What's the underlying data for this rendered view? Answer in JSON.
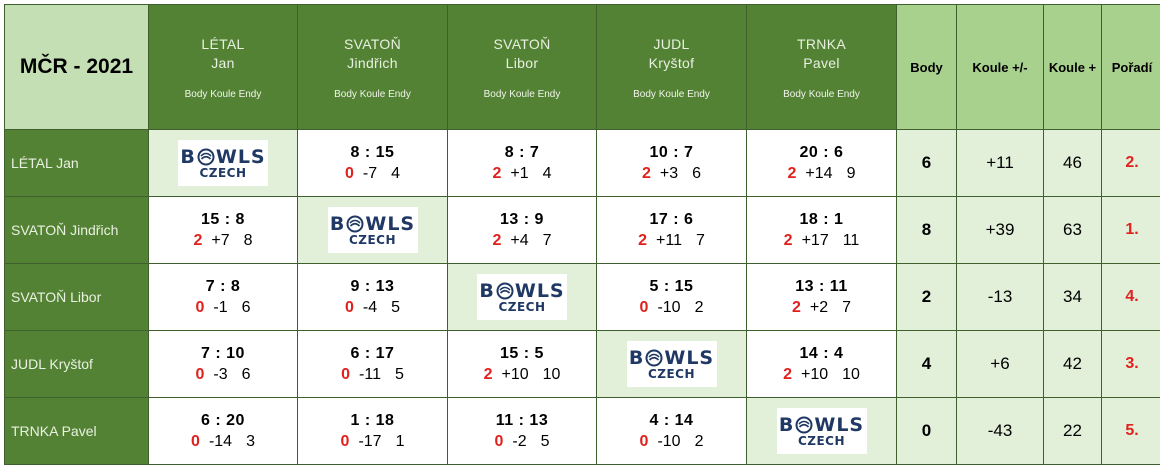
{
  "title": "MČR - 2021",
  "columns": [
    {
      "last": "LÉTAL",
      "first": "Jan",
      "sub": "Body Koule Endy"
    },
    {
      "last": "SVATOŇ",
      "first": "Jindřich",
      "sub": "Body Koule Endy"
    },
    {
      "last": "SVATOŇ",
      "first": "Libor",
      "sub": "Body Koule Endy"
    },
    {
      "last": "JUDL",
      "first": "Kryštof",
      "sub": "Body Koule Endy"
    },
    {
      "last": "TRNKA",
      "first": "Pavel",
      "sub": "Body Koule Endy"
    }
  ],
  "summary_headers": [
    "Body",
    "Koule +/-",
    "Koule +",
    "Pořadí"
  ],
  "logo": {
    "top": "BOWLS",
    "bottom": "CZECH",
    "ball_color": "#1f3864"
  },
  "colors": {
    "header_green": "#548235",
    "light_green": "#e2efd9",
    "mid_green": "#a9d18e",
    "points_red": "#e0211d"
  },
  "rows": [
    {
      "name": "LÉTAL Jan",
      "cells": [
        {
          "self": true
        },
        {
          "score": "8 : 15",
          "points": "0",
          "diff": "-7",
          "ends": "4"
        },
        {
          "score": "8 : 7",
          "points": "2",
          "diff": "+1",
          "ends": "4"
        },
        {
          "score": "10 : 7",
          "points": "2",
          "diff": "+3",
          "ends": "6"
        },
        {
          "score": "20 : 6",
          "points": "2",
          "diff": "+14",
          "ends": "9"
        }
      ],
      "body": "6",
      "koule_diff": "+11",
      "koule_plus": "46",
      "rank": "2."
    },
    {
      "name": "SVATOŇ Jindřich",
      "cells": [
        {
          "score": "15 : 8",
          "points": "2",
          "diff": "+7",
          "ends": "8"
        },
        {
          "self": true
        },
        {
          "score": "13 : 9",
          "points": "2",
          "diff": "+4",
          "ends": "7"
        },
        {
          "score": "17 : 6",
          "points": "2",
          "diff": "+11",
          "ends": "7"
        },
        {
          "score": "18 : 1",
          "points": "2",
          "diff": "+17",
          "ends": "11"
        }
      ],
      "body": "8",
      "koule_diff": "+39",
      "koule_plus": "63",
      "rank": "1."
    },
    {
      "name": "SVATOŇ Libor",
      "cells": [
        {
          "score": "7 : 8",
          "points": "0",
          "diff": "-1",
          "ends": "6"
        },
        {
          "score": "9 : 13",
          "points": "0",
          "diff": "-4",
          "ends": "5"
        },
        {
          "self": true
        },
        {
          "score": "5 : 15",
          "points": "0",
          "diff": "-10",
          "ends": "2"
        },
        {
          "score": "13 : 11",
          "points": "2",
          "diff": "+2",
          "ends": "7"
        }
      ],
      "body": "2",
      "koule_diff": "-13",
      "koule_plus": "34",
      "rank": "4."
    },
    {
      "name": "JUDL Kryštof",
      "cells": [
        {
          "score": "7 : 10",
          "points": "0",
          "diff": "-3",
          "ends": "6"
        },
        {
          "score": "6 : 17",
          "points": "0",
          "diff": "-11",
          "ends": "5"
        },
        {
          "score": "15 : 5",
          "points": "2",
          "diff": "+10",
          "ends": "10"
        },
        {
          "self": true
        },
        {
          "score": "14 : 4",
          "points": "2",
          "diff": "+10",
          "ends": "10"
        }
      ],
      "body": "4",
      "koule_diff": "+6",
      "koule_plus": "42",
      "rank": "3."
    },
    {
      "name": "TRNKA Pavel",
      "cells": [
        {
          "score": "6 : 20",
          "points": "0",
          "diff": "-14",
          "ends": "3"
        },
        {
          "score": "1 : 18",
          "points": "0",
          "diff": "-17",
          "ends": "1"
        },
        {
          "score": "11 : 13",
          "points": "0",
          "diff": "-2",
          "ends": "5"
        },
        {
          "score": "4 : 14",
          "points": "0",
          "diff": "-10",
          "ends": "2"
        },
        {
          "self": true
        }
      ],
      "body": "0",
      "koule_diff": "-43",
      "koule_plus": "22",
      "rank": "5."
    }
  ]
}
